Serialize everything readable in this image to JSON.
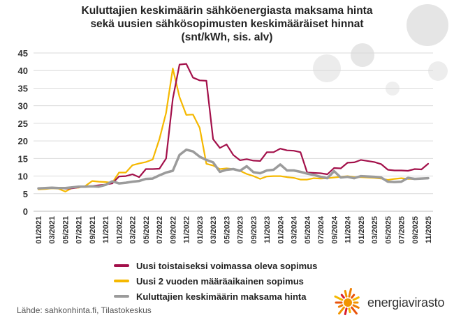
{
  "title_lines": [
    "Kuluttajien keskimäärin sähköenergiasta maksama hinta",
    "sekä uusien sähkösopimusten keskimääräiset hinnat",
    "(snt/kWh, sis. alv)"
  ],
  "source": "Lähde: sahkonhinta.fi, Tilastokeskus",
  "logo": {
    "text": "energiavirasto",
    "icon": "sun-burst-logo-icon"
  },
  "chart_data": {
    "type": "line",
    "ylim": [
      0,
      45
    ],
    "yticks": [
      0,
      5,
      10,
      15,
      20,
      25,
      30,
      35,
      40,
      45
    ],
    "grid": true,
    "legend_position": "bottom",
    "tick_labels": [
      "01/2021",
      "03/2021",
      "05/2021",
      "07/2021",
      "09/2021",
      "11/2021",
      "01/2022",
      "03/2022",
      "05/2022",
      "07/2022",
      "09/2022",
      "11/2022",
      "01/2023",
      "03/2023",
      "05/2023",
      "07/2023",
      "09/2023",
      "11/2023",
      "01/2024",
      "03/2024",
      "05/2024",
      "07/2024",
      "09/2024",
      "11/2024",
      "01/2025",
      "03/2025",
      "05/2025",
      "07/2025",
      "09/2025",
      "11/2025"
    ],
    "x": [
      "01/2021",
      "02/2021",
      "03/2021",
      "04/2021",
      "05/2021",
      "06/2021",
      "07/2021",
      "08/2021",
      "09/2021",
      "10/2021",
      "11/2021",
      "12/2021",
      "01/2022",
      "02/2022",
      "03/2022",
      "04/2022",
      "05/2022",
      "06/2022",
      "07/2022",
      "08/2022",
      "09/2022",
      "10/2022",
      "11/2022",
      "12/2022",
      "01/2023",
      "02/2023",
      "03/2023",
      "04/2023",
      "05/2023",
      "06/2023",
      "07/2023",
      "08/2023",
      "09/2023",
      "10/2023",
      "11/2023",
      "12/2023",
      "01/2024",
      "02/2024",
      "03/2024",
      "04/2024",
      "05/2024",
      "06/2024",
      "07/2024",
      "08/2024",
      "09/2024",
      "10/2024",
      "11/2024",
      "12/2024",
      "01/2025",
      "02/2025",
      "03/2025",
      "04/2025",
      "05/2025",
      "06/2025",
      "07/2025",
      "08/2025",
      "09/2025",
      "10/2025",
      "11/2025"
    ],
    "series": [
      {
        "name": "Uusi toistaiseksi voimassa oleva sopimus",
        "color": "#a3104a",
        "values": [
          6.4,
          6.5,
          6.6,
          6.6,
          6.4,
          6.5,
          6.8,
          7.0,
          7.2,
          7.4,
          7.6,
          7.9,
          9.9,
          10.0,
          10.5,
          9.7,
          12.0,
          12.0,
          12.1,
          15.0,
          32.0,
          41.7,
          41.9,
          38.0,
          37.2,
          37.1,
          20.5,
          18.0,
          19.0,
          16.0,
          14.5,
          14.8,
          14.4,
          14.3,
          16.8,
          16.8,
          17.8,
          17.3,
          17.2,
          16.8,
          11.0,
          10.9,
          10.8,
          10.5,
          12.3,
          12.2,
          13.8,
          13.9,
          14.6,
          14.3,
          14.0,
          13.4,
          11.8,
          11.6,
          11.6,
          11.5,
          12.0,
          11.9,
          13.5
        ]
      },
      {
        "name": "Uusi 2 vuoden määräaikainen sopimus",
        "color": "#f5b800",
        "values": [
          6.2,
          6.3,
          6.5,
          6.4,
          5.6,
          6.6,
          6.7,
          7.2,
          8.6,
          8.4,
          8.3,
          8.1,
          11.0,
          11.0,
          13.1,
          13.6,
          14.0,
          14.7,
          20.5,
          28.0,
          40.6,
          32.5,
          27.4,
          27.5,
          23.7,
          13.5,
          13.0,
          12.0,
          12.2,
          12.0,
          11.5,
          10.6,
          10.0,
          9.2,
          9.9,
          10.0,
          10.0,
          9.7,
          9.5,
          9.0,
          9.0,
          9.4,
          9.3,
          9.4,
          9.6,
          9.8,
          10.0,
          9.7,
          9.7,
          9.6,
          9.5,
          9.3,
          8.9,
          9.2,
          9.4,
          9.2,
          9.2,
          9.3,
          9.4
        ]
      },
      {
        "name": "Kuluttajien keskimäärin maksama hinta",
        "color": "#9b9b9b",
        "values": [
          6.5,
          6.6,
          6.7,
          6.6,
          6.6,
          6.8,
          7.0,
          7.0,
          7.1,
          7.0,
          7.5,
          8.5,
          7.9,
          8.1,
          8.4,
          8.6,
          9.2,
          9.3,
          10.2,
          11.0,
          11.5,
          16.0,
          17.5,
          17.0,
          15.5,
          14.6,
          13.9,
          11.2,
          11.8,
          12.0,
          11.5,
          12.8,
          11.1,
          10.8,
          11.6,
          11.8,
          13.3,
          11.6,
          11.6,
          11.2,
          10.7,
          10.3,
          9.8,
          9.4,
          11.4,
          9.6,
          9.8,
          9.4,
          10.0,
          9.9,
          9.8,
          9.6,
          8.4,
          8.3,
          8.4,
          9.5,
          9.2,
          9.3,
          9.4
        ]
      }
    ]
  }
}
